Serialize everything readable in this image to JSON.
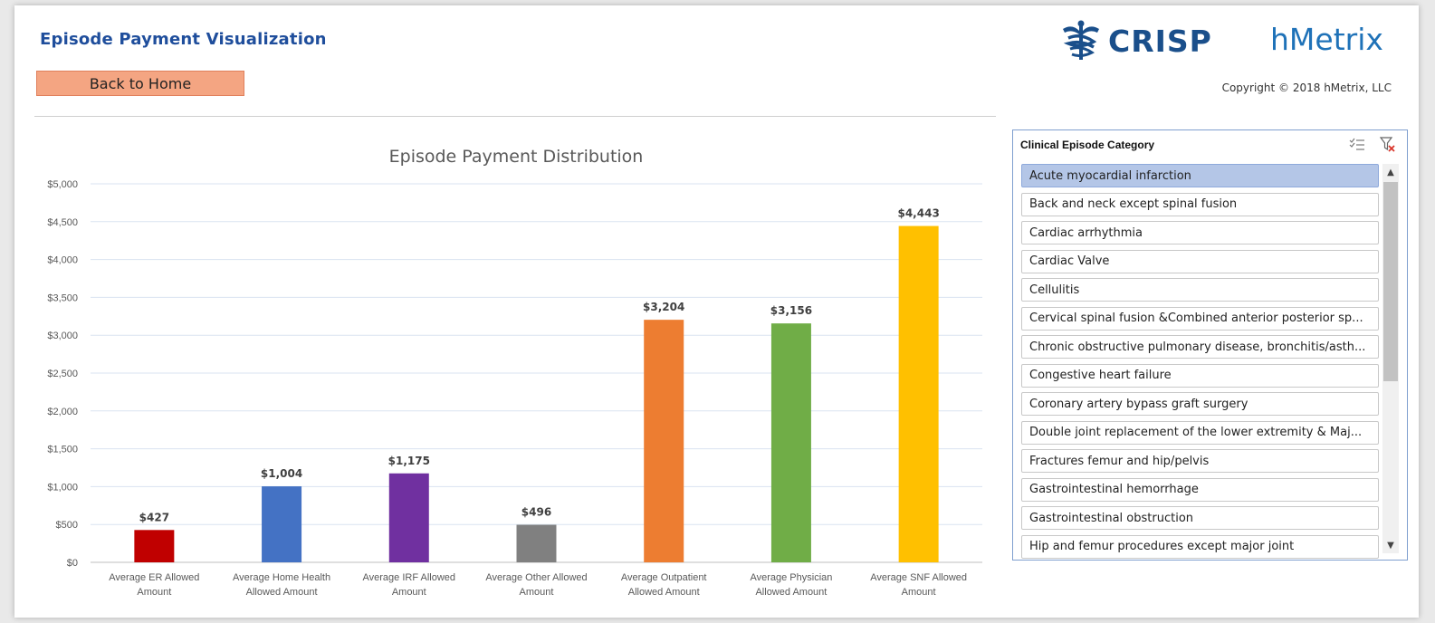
{
  "header": {
    "title": "Episode Payment Visualization",
    "back_label": "Back to Home",
    "logo_crisp": "CRISP",
    "logo_hmetrix": "hMetrix",
    "copyright": "Copyright © 2018 hMetrix, LLC"
  },
  "colors": {
    "title": "#1f4e9c",
    "button": "#f4a582",
    "crisp": "#1a4f8b",
    "hmetrix": "#1f72b8",
    "slicer_selected": "#b4c6e7"
  },
  "chart_data": {
    "type": "bar",
    "title": "Episode Payment Distribution",
    "categories": [
      [
        "Average ER Allowed",
        "Amount"
      ],
      [
        "Average Home Health",
        "Allowed Amount"
      ],
      [
        "Average IRF  Allowed",
        "Amount"
      ],
      [
        "Average Other Allowed",
        "Amount"
      ],
      [
        "Average Outpatient",
        "Allowed Amount"
      ],
      [
        "Average Physician",
        "Allowed Amount"
      ],
      [
        "Average SNF  Allowed",
        "Amount"
      ]
    ],
    "values": [
      427,
      1004,
      1175,
      496,
      3204,
      3156,
      4443
    ],
    "data_labels": [
      "$427",
      "$1,004",
      "$1,175",
      "$496",
      "$3,204",
      "$3,156",
      "$4,443"
    ],
    "bar_colors": [
      "#c00000",
      "#4472c4",
      "#7030a0",
      "#808080",
      "#ed7d31",
      "#70ad47",
      "#ffc000"
    ],
    "ylim": [
      0,
      5000
    ],
    "yticks": [
      0,
      500,
      1000,
      1500,
      2000,
      2500,
      3000,
      3500,
      4000,
      4500,
      5000
    ],
    "ytick_labels": [
      "$0",
      "$500",
      "$1,000",
      "$1,500",
      "$2,000",
      "$2,500",
      "$3,000",
      "$3,500",
      "$4,000",
      "$4,500",
      "$5,000"
    ],
    "grid": true,
    "legend": "none"
  },
  "slicer": {
    "title": "Clinical Episode Category",
    "multiselect_icon": "multi-select-icon",
    "clear_filter_icon": "clear-filter-icon",
    "items": [
      {
        "label": "Acute myocardial infarction",
        "selected": true
      },
      {
        "label": "Back and neck except spinal fusion",
        "selected": false
      },
      {
        "label": "Cardiac arrhythmia",
        "selected": false
      },
      {
        "label": "Cardiac Valve",
        "selected": false
      },
      {
        "label": "Cellulitis",
        "selected": false
      },
      {
        "label": "Cervical spinal fusion &Combined anterior posterior sp...",
        "selected": false
      },
      {
        "label": "Chronic obstructive pulmonary disease, bronchitis/asth...",
        "selected": false
      },
      {
        "label": "Congestive heart failure",
        "selected": false
      },
      {
        "label": "Coronary artery bypass graft surgery",
        "selected": false
      },
      {
        "label": "Double joint replacement of the lower extremity & Maj...",
        "selected": false
      },
      {
        "label": "Fractures femur and hip/pelvis",
        "selected": false
      },
      {
        "label": "Gastrointestinal hemorrhage",
        "selected": false
      },
      {
        "label": "Gastrointestinal obstruction",
        "selected": false
      },
      {
        "label": "Hip and femur procedures except major joint",
        "selected": false
      }
    ]
  }
}
